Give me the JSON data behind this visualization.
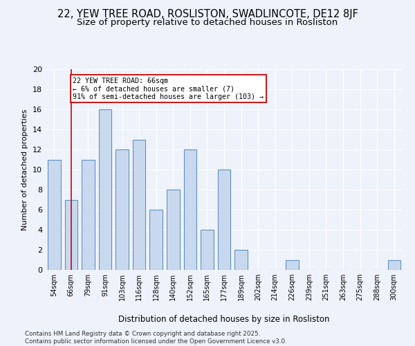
{
  "title1": "22, YEW TREE ROAD, ROSLISTON, SWADLINCOTE, DE12 8JF",
  "title2": "Size of property relative to detached houses in Rosliston",
  "xlabel": "Distribution of detached houses by size in Rosliston",
  "ylabel": "Number of detached properties",
  "categories": [
    "54sqm",
    "66sqm",
    "79sqm",
    "91sqm",
    "103sqm",
    "116sqm",
    "128sqm",
    "140sqm",
    "152sqm",
    "165sqm",
    "177sqm",
    "189sqm",
    "202sqm",
    "214sqm",
    "226sqm",
    "239sqm",
    "251sqm",
    "263sqm",
    "275sqm",
    "288sqm",
    "300sqm"
  ],
  "values": [
    11,
    7,
    11,
    16,
    12,
    13,
    6,
    8,
    12,
    4,
    10,
    2,
    0,
    0,
    1,
    0,
    0,
    0,
    0,
    0,
    1
  ],
  "bar_color": "#c8d8ee",
  "bar_edge_color": "#6090c0",
  "ylim": [
    0,
    20
  ],
  "yticks": [
    0,
    2,
    4,
    6,
    8,
    10,
    12,
    14,
    16,
    18,
    20
  ],
  "red_line_index": 1,
  "annotation_line1": "22 YEW TREE ROAD: 66sqm",
  "annotation_line2": "← 6% of detached houses are smaller (7)",
  "annotation_line3": "91% of semi-detached houses are larger (103) →",
  "annotation_box_color": "#ffffff",
  "annotation_box_edge_color": "#cc0000",
  "footer": "Contains HM Land Registry data © Crown copyright and database right 2025.\nContains public sector information licensed under the Open Government Licence v3.0.",
  "background_color": "#eef2fa",
  "grid_color": "#ffffff",
  "title_fontsize": 10.5,
  "subtitle_fontsize": 9.5,
  "bar_width": 0.75
}
